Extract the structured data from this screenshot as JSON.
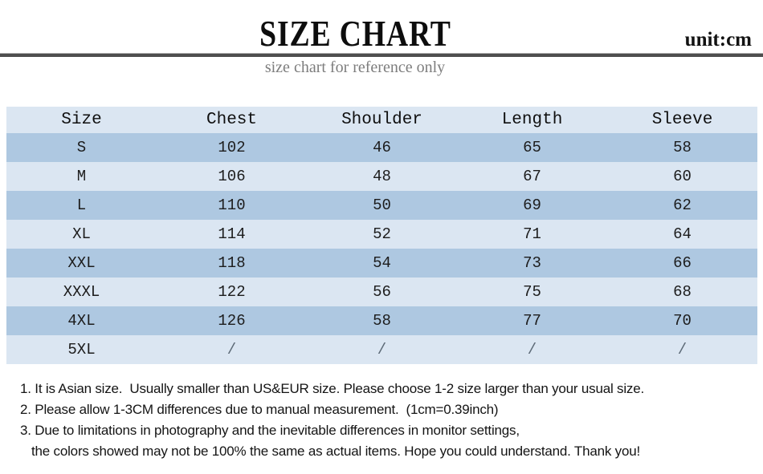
{
  "header": {
    "title": "SIZE CHART",
    "unit_label": "unit:cm",
    "subtitle": "size chart for reference only"
  },
  "table": {
    "columns": [
      "Size",
      "Chest",
      "Shoulder",
      "Length",
      "Sleeve"
    ],
    "rows": [
      {
        "size": "S",
        "chest": "102",
        "shoulder": "46",
        "length": "65",
        "sleeve": "58"
      },
      {
        "size": "M",
        "chest": "106",
        "shoulder": "48",
        "length": "67",
        "sleeve": "60"
      },
      {
        "size": "L",
        "chest": "110",
        "shoulder": "50",
        "length": "69",
        "sleeve": "62"
      },
      {
        "size": "XL",
        "chest": "114",
        "shoulder": "52",
        "length": "71",
        "sleeve": "64"
      },
      {
        "size": "XXL",
        "chest": "118",
        "shoulder": "54",
        "length": "73",
        "sleeve": "66"
      },
      {
        "size": "XXXL",
        "chest": "122",
        "shoulder": "56",
        "length": "75",
        "sleeve": "68"
      },
      {
        "size": "4XL",
        "chest": "126",
        "shoulder": "58",
        "length": "77",
        "sleeve": "70"
      },
      {
        "size": "5XL",
        "chest": "/",
        "shoulder": "/",
        "length": "/",
        "sleeve": "/"
      }
    ]
  },
  "notes": [
    "1. It is Asian size.  Usually smaller than US&EUR size. Please choose 1-2 size larger than your usual size.",
    "2. Please allow 1-3CM differences due to manual measurement.  (1cm=0.39inch)",
    "3. Due to limitations in photography and the inevitable differences in monitor settings,",
    "the colors showed may not be 100% the same as actual items. Hope you could understand. Thank you!"
  ],
  "colors": {
    "row_blue": "#aec8e1",
    "row_pale": "#dbe6f2",
    "divider": "#4e4e4e",
    "subtitle_gray": "#7d7d7d"
  }
}
